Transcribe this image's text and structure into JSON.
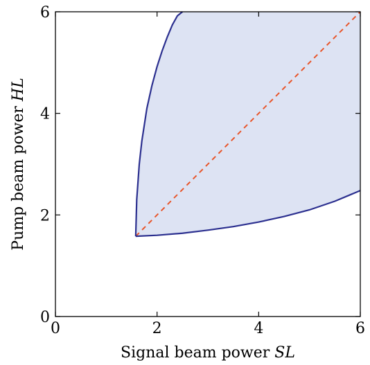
{
  "chart_data": {
    "type": "area",
    "xlabel": "Signal beam power",
    "xlabel_math": "SL",
    "ylabel": "Pump beam power",
    "ylabel_math": "HL",
    "xlim": [
      0,
      6
    ],
    "ylim": [
      0,
      6
    ],
    "xticks": [
      0,
      2,
      4,
      6
    ],
    "yticks": [
      0,
      2,
      4,
      6
    ],
    "grid": false,
    "colors": {
      "boundary": "#2b2f8f",
      "fill": "#dde3f3",
      "diagonal": "#e8552a"
    },
    "series": [
      {
        "type": "line",
        "x": [
          1.58,
          1.6,
          1.65,
          1.7,
          1.8,
          1.9,
          2.0,
          2.1,
          2.2,
          2.3,
          2.4,
          2.5
        ],
        "y": [
          1.58,
          2.3,
          3.0,
          3.45,
          4.1,
          4.55,
          4.92,
          5.23,
          5.5,
          5.74,
          5.92,
          6.0
        ]
      },
      {
        "type": "line",
        "x": [
          1.58,
          2.0,
          2.5,
          3.0,
          3.5,
          4.0,
          4.5,
          5.0,
          5.5,
          6.0
        ],
        "y": [
          1.58,
          1.6,
          1.64,
          1.7,
          1.77,
          1.86,
          1.97,
          2.1,
          2.27,
          2.48
        ]
      },
      {
        "type": "line",
        "style": "dashed",
        "x": [
          1.58,
          6.0
        ],
        "y": [
          1.58,
          6.0
        ]
      }
    ]
  }
}
